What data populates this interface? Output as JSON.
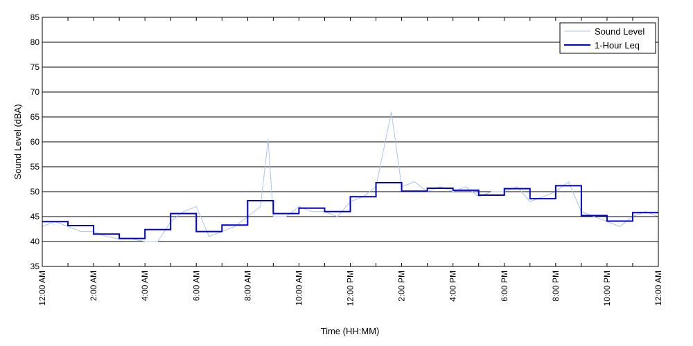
{
  "chart_data": {
    "type": "line",
    "xlabel": "Time (HH:MM)",
    "ylabel": "Sound Level (dBA)",
    "ylim": [
      35,
      85
    ],
    "yticks": [
      35,
      40,
      45,
      50,
      55,
      60,
      65,
      70,
      75,
      80,
      85
    ],
    "xlim": [
      0,
      24
    ],
    "xtick_labels": [
      "12:00 AM",
      "2:00 AM",
      "4:00 AM",
      "6:00 AM",
      "8:00 AM",
      "10:00 AM",
      "12:00 PM",
      "2:00 PM",
      "4:00 PM",
      "6:00 PM",
      "8:00 PM",
      "10:00 PM",
      "12:00 AM"
    ],
    "grid": "horizontal",
    "legend_position": "top-right",
    "colors": {
      "sound_level": "#a9c4f5",
      "leq": "#0000cc"
    },
    "series": [
      {
        "name": "Sound Level",
        "style": "thin-line",
        "x_hours": [
          0.0,
          0.5,
          1.0,
          1.5,
          2.0,
          2.5,
          3.0,
          3.5,
          4.0,
          4.5,
          5.0,
          5.5,
          6.0,
          6.5,
          7.0,
          7.5,
          8.0,
          8.5,
          8.8,
          9.0,
          9.5,
          10.0,
          10.5,
          11.0,
          11.5,
          12.0,
          12.5,
          13.0,
          13.6,
          14.0,
          14.5,
          15.0,
          15.5,
          16.0,
          16.5,
          17.0,
          17.5,
          18.0,
          18.5,
          19.0,
          19.5,
          20.0,
          20.5,
          21.0,
          21.5,
          22.0,
          22.5,
          23.0,
          23.5,
          24.0
        ],
        "values": [
          43,
          44,
          43,
          42,
          42,
          41,
          40.5,
          40.5,
          40,
          40,
          44,
          46,
          47,
          41,
          42,
          43,
          45,
          47,
          60.5,
          45,
          45,
          47,
          46,
          46,
          45,
          48,
          49,
          51,
          66,
          51,
          52,
          50,
          51,
          50,
          51,
          49,
          50,
          50,
          51,
          48,
          49,
          50,
          52,
          46,
          45,
          44,
          43,
          45,
          46,
          45
        ]
      },
      {
        "name": "1-Hour Leq",
        "style": "step",
        "hour_values": [
          44,
          43.2,
          41.5,
          40.6,
          42.4,
          45.6,
          42,
          43.3,
          48.2,
          45.6,
          46.7,
          46,
          49,
          51.8,
          50.1,
          50.7,
          50.3,
          49.3,
          50.6,
          48.6,
          51.2,
          45.2,
          44.1,
          45.8
        ]
      }
    ]
  }
}
